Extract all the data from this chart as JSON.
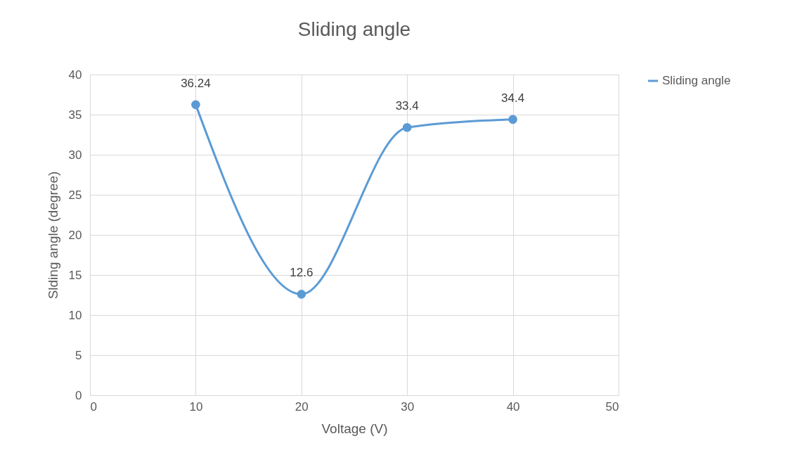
{
  "chart_data": {
    "type": "line",
    "title": "Sliding angle",
    "xlabel": "Voltage (V)",
    "ylabel": "Slding angle (degree)",
    "x": [
      10,
      20,
      30,
      40
    ],
    "series": [
      {
        "name": "Sliding angle",
        "color": "#5b9bd5",
        "values": [
          36.24,
          12.6,
          33.4,
          34.4
        ]
      }
    ],
    "xlim": [
      0,
      50
    ],
    "xticks": [
      0,
      10,
      20,
      30,
      40,
      50
    ],
    "ylim": [
      0,
      40
    ],
    "yticks": [
      0,
      5,
      10,
      15,
      20,
      25,
      30,
      35,
      40
    ],
    "grid": true,
    "legend": "right",
    "marker": "circle",
    "line_style": "solid",
    "data_labels": true
  }
}
